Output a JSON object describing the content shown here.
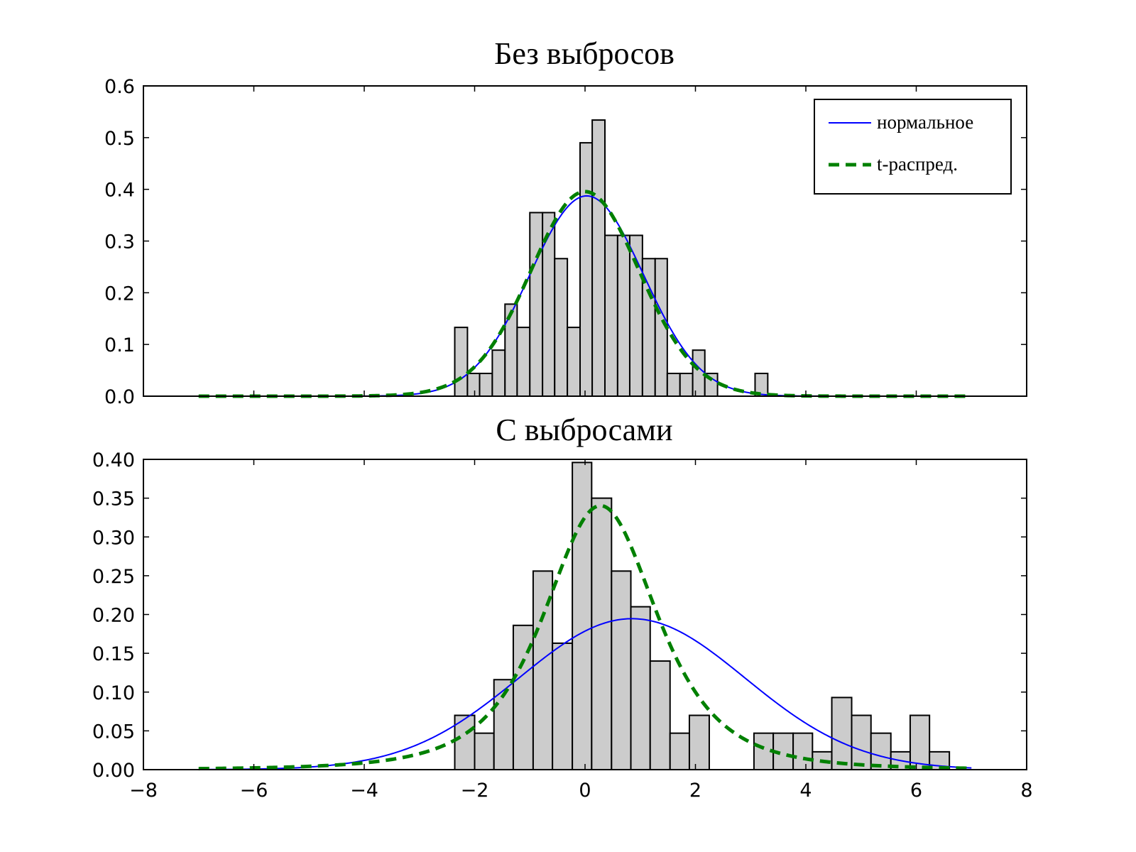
{
  "chart_data": [
    {
      "type": "histogram",
      "title": "Без выбросов",
      "xlabel": "",
      "ylabel": "",
      "xlim": [
        -8,
        8
      ],
      "ylim": [
        0,
        0.6
      ],
      "y_ticks": [
        "0.0",
        "0.1",
        "0.2",
        "0.3",
        "0.4",
        "0.5",
        "0.6"
      ],
      "y_tick_values": [
        0,
        0.1,
        0.2,
        0.3,
        0.4,
        0.5,
        0.6
      ],
      "x_tick_values": [
        -8,
        -6,
        -4,
        -2,
        0,
        2,
        4,
        6,
        8
      ],
      "bar_color": "#cccccc",
      "bars": [
        {
          "x0": -2.36,
          "x1": -2.13,
          "value": 0.133
        },
        {
          "x0": -2.13,
          "x1": -1.91,
          "value": 0.044
        },
        {
          "x0": -1.91,
          "x1": -1.68,
          "value": 0.044
        },
        {
          "x0": -1.68,
          "x1": -1.45,
          "value": 0.089
        },
        {
          "x0": -1.45,
          "x1": -1.23,
          "value": 0.178
        },
        {
          "x0": -1.23,
          "x1": -1.0,
          "value": 0.133
        },
        {
          "x0": -1.0,
          "x1": -0.77,
          "value": 0.355
        },
        {
          "x0": -0.77,
          "x1": -0.55,
          "value": 0.355
        },
        {
          "x0": -0.55,
          "x1": -0.32,
          "value": 0.266
        },
        {
          "x0": -0.32,
          "x1": -0.09,
          "value": 0.133
        },
        {
          "x0": -0.09,
          "x1": 0.13,
          "value": 0.49
        },
        {
          "x0": 0.13,
          "x1": 0.36,
          "value": 0.534
        },
        {
          "x0": 0.36,
          "x1": 0.59,
          "value": 0.311
        },
        {
          "x0": 0.59,
          "x1": 0.81,
          "value": 0.311
        },
        {
          "x0": 0.81,
          "x1": 1.04,
          "value": 0.311
        },
        {
          "x0": 1.04,
          "x1": 1.27,
          "value": 0.266
        },
        {
          "x0": 1.27,
          "x1": 1.49,
          "value": 0.266
        },
        {
          "x0": 1.49,
          "x1": 1.72,
          "value": 0.044
        },
        {
          "x0": 1.72,
          "x1": 1.95,
          "value": 0.044
        },
        {
          "x0": 1.95,
          "x1": 2.17,
          "value": 0.089
        },
        {
          "x0": 2.17,
          "x1": 2.4,
          "value": 0.044
        },
        {
          "x0": 3.08,
          "x1": 3.31,
          "value": 0.044
        }
      ],
      "series": [
        {
          "name": "нормальное",
          "distribution": "normal",
          "mu": 0.03,
          "sigma": 1.03,
          "x_range": [
            -7,
            7
          ],
          "color": "#0000ff",
          "style": "solid"
        },
        {
          "name": "t-распред.",
          "distribution": "t",
          "loc": 0.0,
          "scale": 1.0,
          "df": 30,
          "x_range": [
            -7,
            7
          ],
          "color": "#008000",
          "style": "dashed"
        }
      ],
      "legend": {
        "position": "top-right",
        "entries": [
          "нормальное",
          "t-распред."
        ]
      }
    },
    {
      "type": "histogram",
      "title": "С выбросами",
      "xlabel": "",
      "ylabel": "",
      "xlim": [
        -8,
        8
      ],
      "ylim": [
        0,
        0.4
      ],
      "y_ticks": [
        "0.00",
        "0.05",
        "0.10",
        "0.15",
        "0.20",
        "0.25",
        "0.30",
        "0.35",
        "0.40"
      ],
      "y_tick_values": [
        0,
        0.05,
        0.1,
        0.15,
        0.2,
        0.25,
        0.3,
        0.35,
        0.4
      ],
      "x_ticks": [
        "−8",
        "−6",
        "−4",
        "−2",
        "0",
        "2",
        "4",
        "6",
        "8"
      ],
      "x_tick_values": [
        -8,
        -6,
        -4,
        -2,
        0,
        2,
        4,
        6,
        8
      ],
      "bar_color": "#cccccc",
      "bars": [
        {
          "x0": -2.36,
          "x1": -2.0,
          "value": 0.07
        },
        {
          "x0": -2.0,
          "x1": -1.65,
          "value": 0.047
        },
        {
          "x0": -1.65,
          "x1": -1.3,
          "value": 0.116
        },
        {
          "x0": -1.3,
          "x1": -0.94,
          "value": 0.186
        },
        {
          "x0": -0.94,
          "x1": -0.59,
          "value": 0.256
        },
        {
          "x0": -0.59,
          "x1": -0.23,
          "value": 0.163
        },
        {
          "x0": -0.23,
          "x1": 0.12,
          "value": 0.396
        },
        {
          "x0": 0.12,
          "x1": 0.48,
          "value": 0.35
        },
        {
          "x0": 0.48,
          "x1": 0.83,
          "value": 0.256
        },
        {
          "x0": 0.83,
          "x1": 1.18,
          "value": 0.21
        },
        {
          "x0": 1.18,
          "x1": 1.54,
          "value": 0.14
        },
        {
          "x0": 1.54,
          "x1": 1.89,
          "value": 0.047
        },
        {
          "x0": 1.89,
          "x1": 2.25,
          "value": 0.07
        },
        {
          "x0": 3.06,
          "x1": 3.41,
          "value": 0.047
        },
        {
          "x0": 3.41,
          "x1": 3.77,
          "value": 0.047
        },
        {
          "x0": 3.77,
          "x1": 4.12,
          "value": 0.047
        },
        {
          "x0": 4.12,
          "x1": 4.47,
          "value": 0.023
        },
        {
          "x0": 4.47,
          "x1": 4.83,
          "value": 0.093
        },
        {
          "x0": 4.83,
          "x1": 5.18,
          "value": 0.07
        },
        {
          "x0": 5.18,
          "x1": 5.54,
          "value": 0.047
        },
        {
          "x0": 5.54,
          "x1": 5.89,
          "value": 0.023
        },
        {
          "x0": 5.89,
          "x1": 6.24,
          "value": 0.07
        },
        {
          "x0": 6.24,
          "x1": 6.6,
          "value": 0.023
        }
      ],
      "series": [
        {
          "name": "нормальное",
          "distribution": "normal",
          "mu": 0.85,
          "sigma": 2.05,
          "x_range": [
            -7,
            7
          ],
          "color": "#0000ff",
          "style": "solid"
        },
        {
          "name": "t-распред.",
          "distribution": "t",
          "loc": 0.28,
          "scale": 1.08,
          "df": 3,
          "x_range": [
            -7,
            7
          ],
          "color": "#008000",
          "style": "dashed"
        }
      ]
    }
  ]
}
